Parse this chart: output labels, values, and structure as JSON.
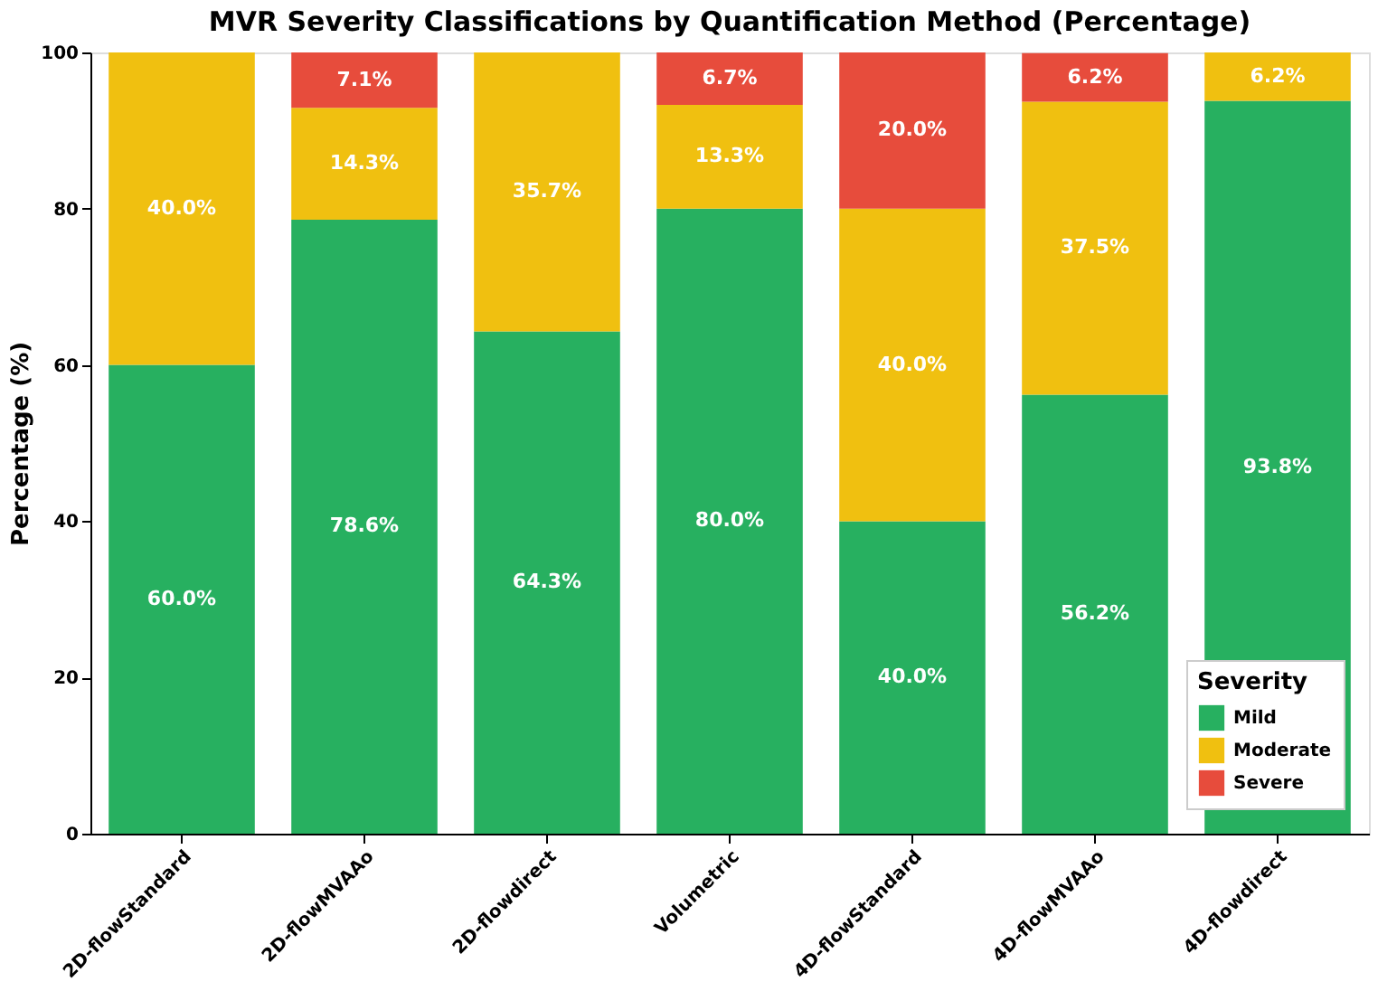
{
  "chart_data": {
    "type": "bar",
    "title": "MVR Severity Classifications by Quantification Method (Percentage)",
    "ylabel": "Percentage (%)",
    "legend_title": "Severity",
    "categories": [
      "2D-flowStandard",
      "2D-flowMVAAo",
      "2D-flowdirect",
      "Volumetric",
      "4D-flowStandard",
      "4D-flowMVAAo",
      "4D-flowdirect"
    ],
    "stacked": true,
    "ylim": [
      0,
      100
    ],
    "yticks": [
      0,
      20,
      40,
      60,
      80,
      100
    ],
    "grid": false,
    "legend": "bottom right",
    "series": [
      {
        "name": "Mild",
        "color": "#27b060",
        "values": [
          60.0,
          78.6,
          64.3,
          80.0,
          40.0,
          56.2,
          93.8
        ],
        "value_labels": [
          "60.0%",
          "78.6%",
          "64.3%",
          "80.0%",
          "40.0%",
          "56.2%",
          "93.8%"
        ]
      },
      {
        "name": "Moderate",
        "color": "#f0c010",
        "values": [
          40.0,
          14.3,
          35.7,
          13.3,
          40.0,
          37.5,
          6.2
        ],
        "value_labels": [
          "40.0%",
          "14.3%",
          "35.7%",
          "13.3%",
          "40.0%",
          "37.5%",
          "6.2%"
        ]
      },
      {
        "name": "Severe",
        "color": "#e74c3c",
        "values": [
          0,
          7.1,
          0,
          6.7,
          20.0,
          6.2,
          0
        ],
        "value_labels": [
          null,
          "7.1%",
          null,
          "6.7%",
          "20.0%",
          "6.2%",
          null
        ]
      }
    ]
  }
}
